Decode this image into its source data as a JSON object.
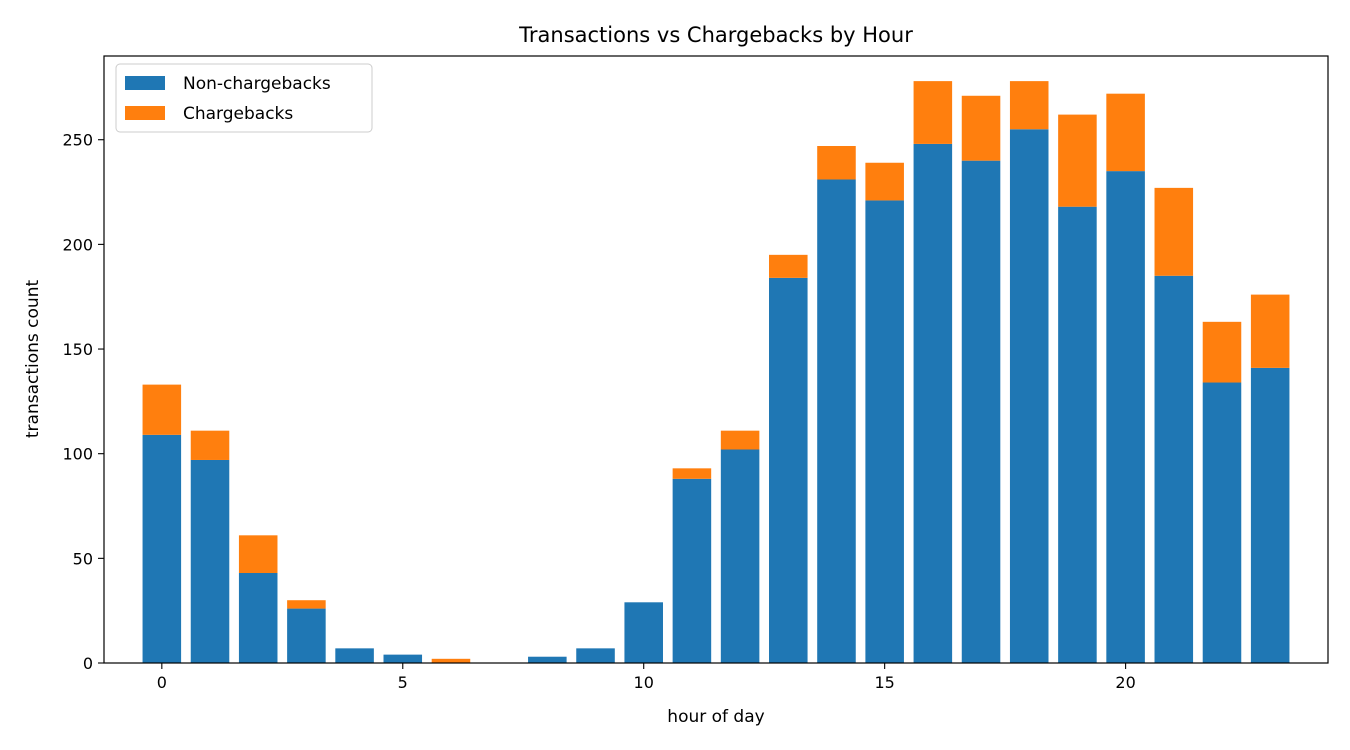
{
  "chart_data": {
    "type": "bar",
    "stacked": true,
    "title": "Transactions vs Chargebacks by Hour",
    "xlabel": "hour of day",
    "ylabel": "transactions count",
    "x": [
      0,
      1,
      2,
      3,
      4,
      5,
      6,
      7,
      8,
      9,
      10,
      11,
      12,
      13,
      14,
      15,
      16,
      17,
      18,
      19,
      20,
      21,
      22,
      23
    ],
    "xlim": [
      -1.2,
      24.2
    ],
    "ylim": [
      0,
      290
    ],
    "xticks": [
      0,
      5,
      10,
      15,
      20
    ],
    "yticks": [
      0,
      50,
      100,
      150,
      200,
      250
    ],
    "grid": false,
    "legend_position": "top-left",
    "series": [
      {
        "name": "Non-chargebacks",
        "color": "#1f77b4",
        "values": [
          109,
          97,
          43,
          26,
          7,
          4,
          0,
          0,
          3,
          7,
          29,
          88,
          102,
          184,
          231,
          221,
          248,
          240,
          255,
          218,
          235,
          185,
          134,
          141
        ]
      },
      {
        "name": "Chargebacks",
        "color": "#ff7f0e",
        "values": [
          24,
          14,
          18,
          4,
          0,
          0,
          2,
          0,
          0,
          0,
          0,
          5,
          9,
          11,
          16,
          18,
          30,
          31,
          23,
          44,
          37,
          42,
          29,
          35
        ]
      }
    ]
  }
}
